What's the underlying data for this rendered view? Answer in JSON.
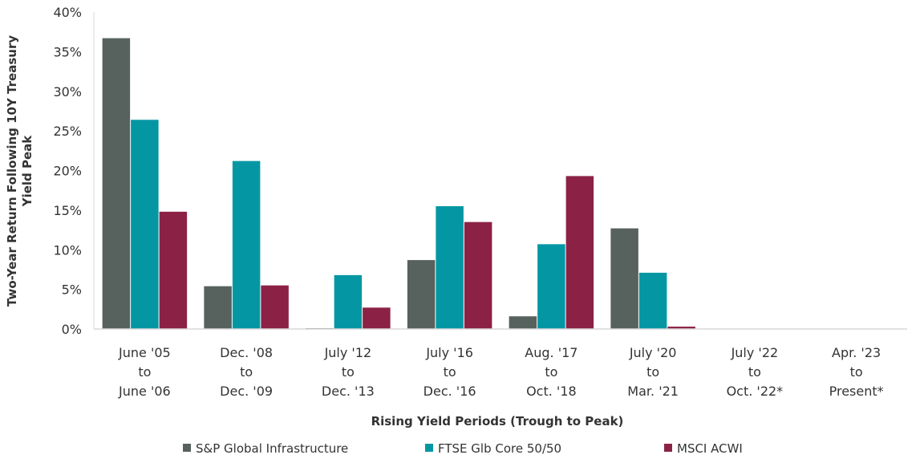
{
  "chart_data": {
    "type": "bar",
    "title": "",
    "xlabel": "Rising Yield Periods (Trough to Peak)",
    "ylabel": [
      "Two-Year Return Following 10Y Treasury",
      "Yield Peak"
    ],
    "ylim": [
      0,
      40
    ],
    "yticks": [
      "0%",
      "5%",
      "10%",
      "15%",
      "20%",
      "25%",
      "30%",
      "35%",
      "40%"
    ],
    "grid": false,
    "legend_position": "bottom",
    "categories": [
      [
        "June '05",
        "to",
        "June '06"
      ],
      [
        "Dec. '08",
        "to",
        "Dec. '09"
      ],
      [
        "July '12",
        "to",
        "Dec. '13"
      ],
      [
        "July '16",
        "to",
        "Dec. '16"
      ],
      [
        "Aug. '17",
        "to",
        "Oct. '18"
      ],
      [
        "July '20",
        "to",
        "Mar. '21"
      ],
      [
        "July '22",
        "to",
        "Oct. '22*"
      ],
      [
        "Apr. '23",
        "to",
        "Present*"
      ]
    ],
    "series": [
      {
        "name": "S&P Global Infrastructure",
        "color": "#57625F",
        "values": [
          36.7,
          5.4,
          0.1,
          8.7,
          1.6,
          12.7,
          null,
          null
        ]
      },
      {
        "name": "FTSE Glb Core 50/50",
        "color": "#0497A3",
        "values": [
          26.4,
          21.2,
          6.8,
          15.5,
          10.7,
          7.1,
          null,
          null
        ]
      },
      {
        "name": "MSCI ACWI",
        "color": "#8B2245",
        "values": [
          14.8,
          5.5,
          2.7,
          13.5,
          19.3,
          0.3,
          null,
          null
        ]
      }
    ]
  }
}
